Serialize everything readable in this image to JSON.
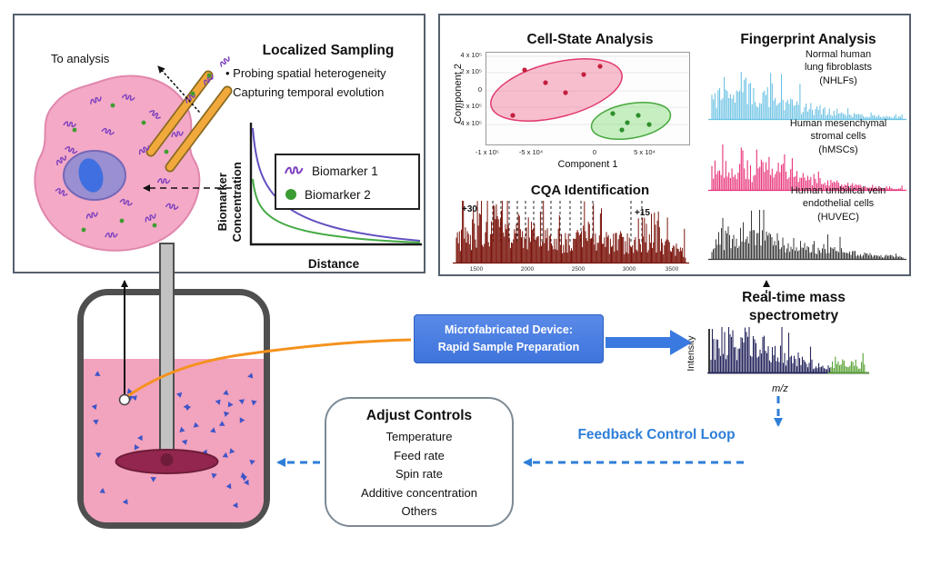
{
  "localized_sampling": {
    "title": "Localized Sampling",
    "bullet1": "• Probing spatial heterogeneity",
    "bullet2": "• Capturing temporal evolution",
    "to_analysis": "To analysis",
    "chart": {
      "ylabel": "Biomarker\nConcentration",
      "xlabel": "Distance",
      "legend1": "Biomarker 1",
      "legend2": "Biomarker 2"
    }
  },
  "cell_state": {
    "title": "Cell-State Analysis",
    "ylabel": "Component 2",
    "xlabel": "Component 1",
    "yticks": [
      "4 x 10⁵",
      "2 x 10⁵",
      "0",
      "-2 x 10⁵",
      "-4 x 10⁵"
    ],
    "xticks": [
      "-1 x 10⁵",
      "-5 x 10⁴",
      "0",
      "5 x 10⁴"
    ]
  },
  "cqa": {
    "title": "CQA Identification",
    "charge_left": "+30",
    "charge_right": "+15",
    "xticks": [
      "1500",
      "2000",
      "2500",
      "3000",
      "3500"
    ]
  },
  "fingerprint": {
    "title": "Fingerprint Analysis",
    "label1": "Normal human\nlung fibroblasts\n(NHLFs)",
    "label2": "Human mesenchymal\nstromal cells\n(hMSCs)",
    "label3": "Human umbilical vein\nendothelial cells\n(HUVEC)"
  },
  "device": {
    "label": "Microfabricated Device:\nRapid Sample Preparation"
  },
  "mass_spec": {
    "title": "Real-time mass\nspectrometry",
    "ylabel": "Intensity",
    "xlabel": "m/z"
  },
  "adjust_controls": {
    "title": "Adjust Controls",
    "items": [
      "Temperature",
      "Feed rate",
      "Spin rate",
      "Additive concentration",
      "Others"
    ]
  },
  "feedback": {
    "label": "Feedback Control Loop"
  },
  "colors": {
    "accent_blue": "#2e7ed8",
    "device_blue": "#4a7fe0",
    "nhlf_blue": "#6cc2e4",
    "hmsc_pink": "#e8327a",
    "huvec_dark": "#3a3a3a",
    "cqa_red": "#7a150c",
    "tube_orange": "#f5921e"
  }
}
